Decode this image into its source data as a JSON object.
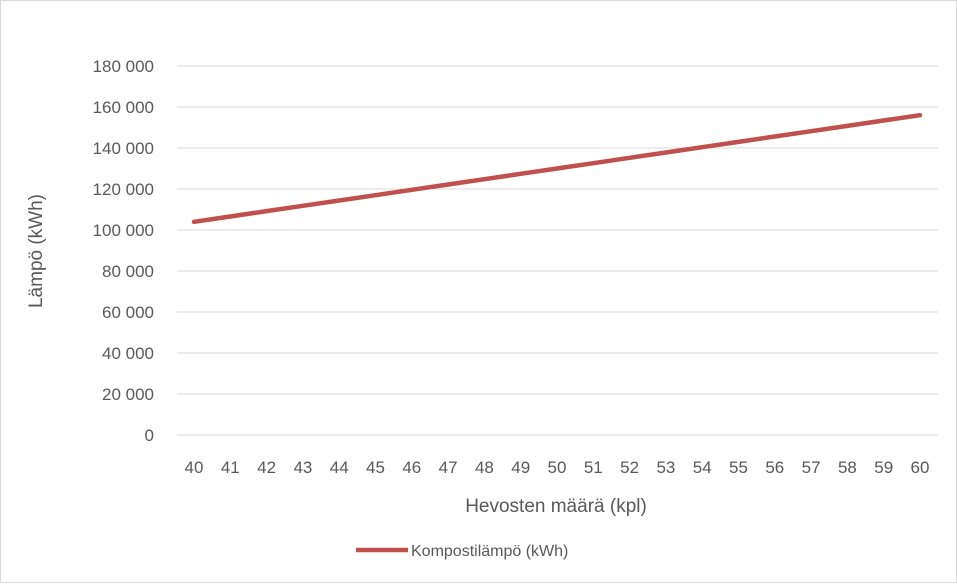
{
  "chart_data": {
    "type": "line",
    "title": "",
    "xlabel": "Hevosten määrä (kpl)",
    "ylabel": "Lämpö (kWh)",
    "x": [
      40,
      41,
      42,
      43,
      44,
      45,
      46,
      47,
      48,
      49,
      50,
      51,
      52,
      53,
      54,
      55,
      56,
      57,
      58,
      59,
      60
    ],
    "x_tick_labels": [
      "40",
      "41",
      "42",
      "43",
      "44",
      "45",
      "46",
      "47",
      "48",
      "49",
      "50",
      "51",
      "52",
      "53",
      "54",
      "55",
      "56",
      "57",
      "58",
      "59",
      "60"
    ],
    "series": [
      {
        "name": "Kompostilämpö (kWh)",
        "color": "#c0504d",
        "values": [
          104000,
          106600,
          109200,
          111800,
          114400,
          117000,
          119600,
          122200,
          124800,
          127400,
          130000,
          132600,
          135200,
          137800,
          140400,
          143000,
          145600,
          148200,
          150800,
          153400,
          156000
        ]
      }
    ],
    "ylim": [
      0,
      180000
    ],
    "y_ticks": [
      0,
      20000,
      40000,
      60000,
      80000,
      100000,
      120000,
      140000,
      160000,
      180000
    ],
    "y_tick_labels": [
      "0",
      "20 000",
      "40 000",
      "60 000",
      "80 000",
      "100 000",
      "120 000",
      "140 000",
      "160 000",
      "180 000"
    ],
    "grid": "horizontal",
    "legend_position": "bottom"
  }
}
